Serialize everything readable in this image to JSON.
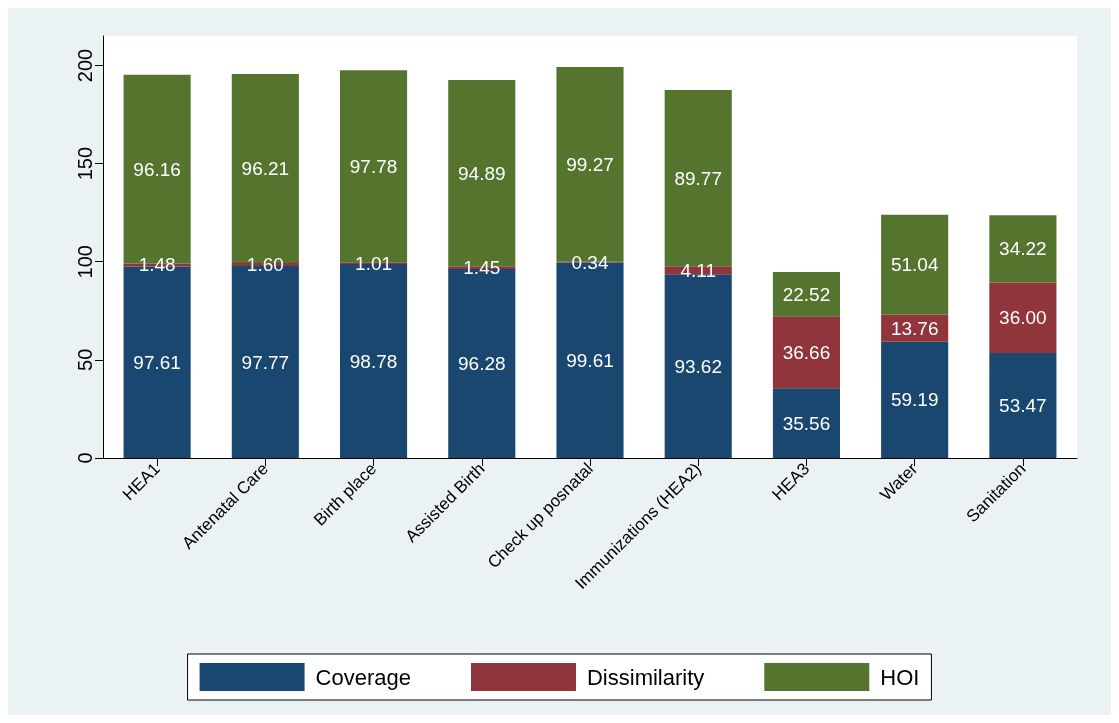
{
  "chart_data": {
    "type": "bar",
    "stacked": true,
    "grid": false,
    "legend": "bottom",
    "categories": [
      "HEA1",
      "Antenatal Care",
      "Birth place",
      "Assisted Birth",
      "Check up posnatal",
      "Immunizations (HEA2)",
      "HEA3",
      "Water",
      "Sanitation"
    ],
    "series": [
      {
        "name": "Coverage",
        "color": "#1a476f",
        "values": [
          97.61,
          97.77,
          98.78,
          96.28,
          99.61,
          93.62,
          35.56,
          59.19,
          53.47
        ],
        "value_labels": [
          "97.61",
          "97.77",
          "98.78",
          "96.28",
          "99.61",
          "93.62",
          "35.56",
          "59.19",
          "53.47"
        ]
      },
      {
        "name": "Dissimilarity",
        "color": "#90353b",
        "values": [
          1.48,
          1.6,
          1.01,
          1.45,
          0.34,
          4.11,
          36.66,
          13.76,
          36.0
        ],
        "value_labels": [
          "1.48",
          "1.60",
          "1.01",
          "1.45",
          "0.34",
          "4.11",
          "36.66",
          "13.76",
          "36.00"
        ]
      },
      {
        "name": "HOI",
        "color": "#55752f",
        "values": [
          96.16,
          96.21,
          97.78,
          94.89,
          99.27,
          89.77,
          22.52,
          51.04,
          34.22
        ],
        "value_labels": [
          "96.16",
          "96.21",
          "97.78",
          "94.89",
          "99.27",
          "89.77",
          "22.52",
          "51.04",
          "34.22"
        ]
      }
    ],
    "ylim": [
      0,
      215
    ],
    "yticks": [
      0,
      50,
      100,
      150,
      200
    ]
  }
}
